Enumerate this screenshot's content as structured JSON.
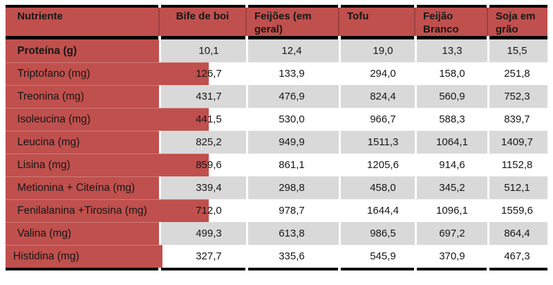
{
  "table": {
    "columns": [
      "Nutriente",
      "Bife de boi",
      "Feijões (em geral)",
      "Tofu",
      "Feijão Branco",
      "Soja em grão"
    ],
    "rows": [
      {
        "label": "Proteína (g)",
        "values": [
          "10,1",
          "12,4",
          "19,0",
          "13,3",
          "15,5"
        ],
        "shade": "gray",
        "emphasis": true,
        "red_overlap": false
      },
      {
        "label": "Triptofano (mg)",
        "values": [
          "126,7",
          "133,9",
          "294,0",
          "158,0",
          "251,8"
        ],
        "shade": "white",
        "emphasis": false,
        "red_overlap": true
      },
      {
        "label": "Treonina (mg)",
        "values": [
          "431,7",
          "476,9",
          "824,4",
          "560,9",
          "752,3"
        ],
        "shade": "gray",
        "emphasis": false,
        "red_overlap": false
      },
      {
        "label": "Isoleucina (mg)",
        "values": [
          "441,5",
          "530,0",
          "966,7",
          "588,3",
          "839,7"
        ],
        "shade": "white",
        "emphasis": false,
        "red_overlap": true
      },
      {
        "label": "Leucina (mg)",
        "values": [
          "825,2",
          "949,9",
          "1511,3",
          "1064,1",
          "1409,7"
        ],
        "shade": "gray",
        "emphasis": false,
        "red_overlap": false
      },
      {
        "label": "Lisina (mg)",
        "values": [
          "859,6",
          "861,1",
          "1205,6",
          "914,6",
          "1152,8"
        ],
        "shade": "white",
        "emphasis": false,
        "red_overlap": true
      },
      {
        "label": "Metionina + Citeína (mg)",
        "values": [
          "339,4",
          "298,8",
          "458,0",
          "345,2",
          "512,1"
        ],
        "shade": "gray",
        "emphasis": false,
        "red_overlap": false
      },
      {
        "label": "Fenilalanina +Tirosina (mg)",
        "values": [
          "712,0",
          "978,7",
          "1644,4",
          "1096,1",
          "1559,6"
        ],
        "shade": "white",
        "emphasis": false,
        "red_overlap": true
      },
      {
        "label": "Valina (mg)",
        "values": [
          "499,3",
          "613,8",
          "986,5",
          "697,2",
          "864,4"
        ],
        "shade": "gray",
        "emphasis": false,
        "red_overlap": false
      },
      {
        "label": "Histidina (mg)",
        "values": [
          "327,7",
          "335,6",
          "545,9",
          "370,9",
          "467,3"
        ],
        "shade": "white",
        "emphasis": false,
        "red_overlap": false
      }
    ],
    "colors": {
      "header_red": "#C0504D",
      "row_gray": "#D9D9D9",
      "border_black": "#000000"
    }
  }
}
